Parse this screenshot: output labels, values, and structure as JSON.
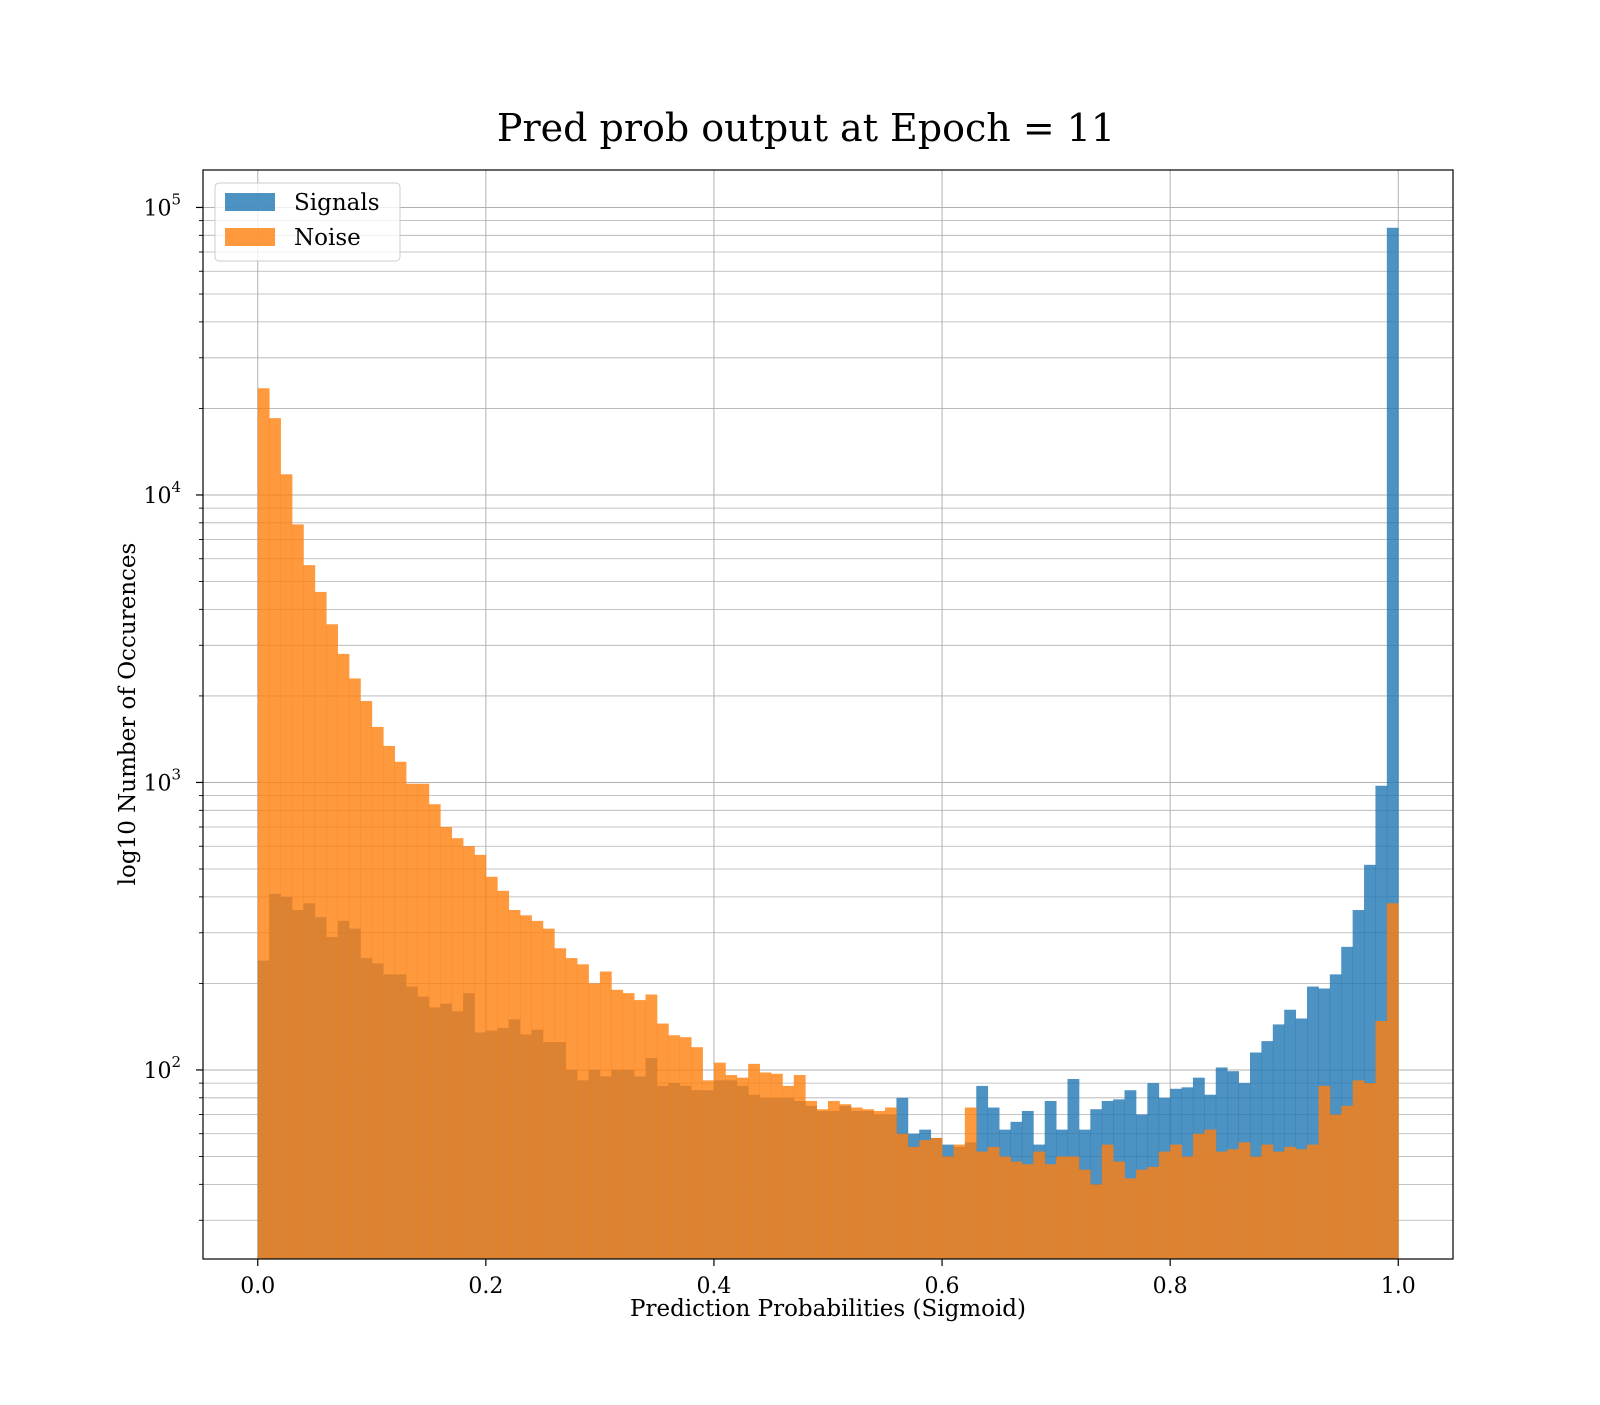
{
  "chart_data": {
    "type": "bar",
    "title": "Pred prob output at Epoch = 11",
    "xlabel": "Prediction Probabilities (Sigmoid)",
    "ylabel": "log10 Number of Occurences",
    "xlim": [
      -0.048,
      1.048
    ],
    "ylim": [
      22,
      135000
    ],
    "yscale": "log",
    "grid": true,
    "legend_position": "top-left",
    "x_ticks": [
      0.0,
      0.2,
      0.4,
      0.6,
      0.8,
      1.0
    ],
    "x_tick_labels": [
      "0.0",
      "0.2",
      "0.4",
      "0.6",
      "0.8",
      "1.0"
    ],
    "y_ticks": [
      100,
      1000,
      10000,
      100000
    ],
    "y_tick_bases": [
      "10",
      "10",
      "10",
      "10"
    ],
    "y_tick_exponents": [
      "2",
      "3",
      "4",
      "5"
    ],
    "bin_width": 0.01,
    "bin_start": 0.0,
    "series": [
      {
        "name": "Signals",
        "color": "#1f77b4",
        "values": [
          240,
          410,
          400,
          360,
          380,
          340,
          290,
          330,
          310,
          245,
          235,
          215,
          215,
          195,
          180,
          165,
          170,
          160,
          185,
          135,
          137,
          140,
          150,
          133,
          138,
          125,
          125,
          100,
          92,
          100,
          95,
          100,
          100,
          95,
          110,
          88,
          90,
          88,
          85,
          85,
          92,
          92,
          88,
          82,
          80,
          80,
          80,
          78,
          75,
          72,
          72,
          75,
          72,
          72,
          70,
          70,
          80,
          60,
          62,
          58,
          55,
          54,
          56,
          88,
          74,
          62,
          66,
          72,
          55,
          78,
          62,
          93,
          62,
          73,
          78,
          79,
          85,
          70,
          90,
          80,
          86,
          87,
          94,
          82,
          102,
          99,
          90,
          115,
          126,
          144,
          162,
          151,
          195,
          192,
          215,
          268,
          360,
          517,
          974,
          85000
        ]
      },
      {
        "name": "Noise",
        "color": "#ff7f0e",
        "values": [
          23500,
          18500,
          11800,
          7900,
          5700,
          4600,
          3550,
          2800,
          2300,
          1920,
          1560,
          1340,
          1180,
          990,
          990,
          840,
          700,
          640,
          600,
          560,
          470,
          420,
          360,
          345,
          330,
          310,
          265,
          245,
          233,
          200,
          220,
          190,
          185,
          175,
          183,
          145,
          132,
          130,
          120,
          92,
          106,
          96,
          94,
          105,
          98,
          97,
          88,
          96,
          78,
          73,
          78,
          76,
          74,
          73,
          72,
          74,
          60,
          54,
          57,
          58,
          50,
          55,
          74,
          52,
          54,
          50,
          48,
          47,
          52,
          47,
          50,
          50,
          45,
          40,
          55,
          48,
          42,
          45,
          46,
          52,
          55,
          50,
          60,
          62,
          52,
          53,
          56,
          50,
          55,
          52,
          54,
          53,
          55,
          88,
          70,
          75,
          92,
          90,
          148,
          380
        ]
      }
    ]
  }
}
